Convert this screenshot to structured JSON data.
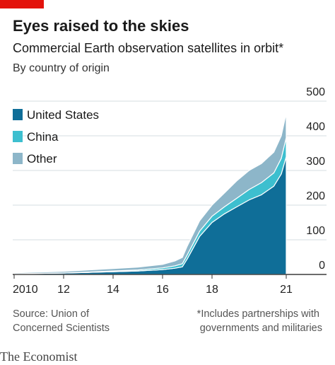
{
  "chart_data": {
    "type": "stacked-area",
    "title": "Eyes raised to the skies",
    "subtitle": "Commercial Earth observation satellites in orbit*",
    "y_label": "By country of origin",
    "x": [
      2010,
      2011,
      2012,
      2013,
      2014,
      2015,
      2016,
      2016.5,
      2016.8,
      2017.0,
      2017.5,
      2018,
      2018.5,
      2019,
      2019.5,
      2020,
      2020.5,
      2020.8,
      2021
    ],
    "series": [
      {
        "name": "United States",
        "color": "#0f6e98",
        "values": [
          2,
          3,
          4,
          6,
          8,
          10,
          14,
          18,
          22,
          45,
          110,
          150,
          175,
          195,
          215,
          230,
          255,
          290,
          340
        ]
      },
      {
        "name": "China",
        "color": "#3dbfcf",
        "values": [
          0,
          0,
          0,
          1,
          2,
          3,
          5,
          7,
          9,
          12,
          15,
          18,
          20,
          25,
          30,
          35,
          38,
          45,
          55
        ]
      },
      {
        "name": "Other",
        "color": "#8db6c9",
        "values": [
          3,
          4,
          5,
          6,
          7,
          8,
          10,
          14,
          18,
          25,
          30,
          32,
          40,
          50,
          55,
          55,
          60,
          65,
          70
        ]
      }
    ],
    "xlim": [
      2010,
      2022.5
    ],
    "xticks": [
      2010,
      {
        "value": 2012,
        "label": "12"
      },
      {
        "value": 2014,
        "label": "14"
      },
      {
        "value": 2016,
        "label": "16"
      },
      {
        "value": 2018,
        "label": "18"
      },
      {
        "value": 2021,
        "label": "21"
      }
    ],
    "ylim": [
      0,
      500
    ],
    "yticks": [
      0,
      100,
      200,
      300,
      400,
      500
    ],
    "grid": true,
    "legend": "top-left",
    "source": "Source: Union of Concerned Scientists",
    "footnote": "*Includes partnerships with governments and militaries",
    "brand": "The Economist"
  }
}
